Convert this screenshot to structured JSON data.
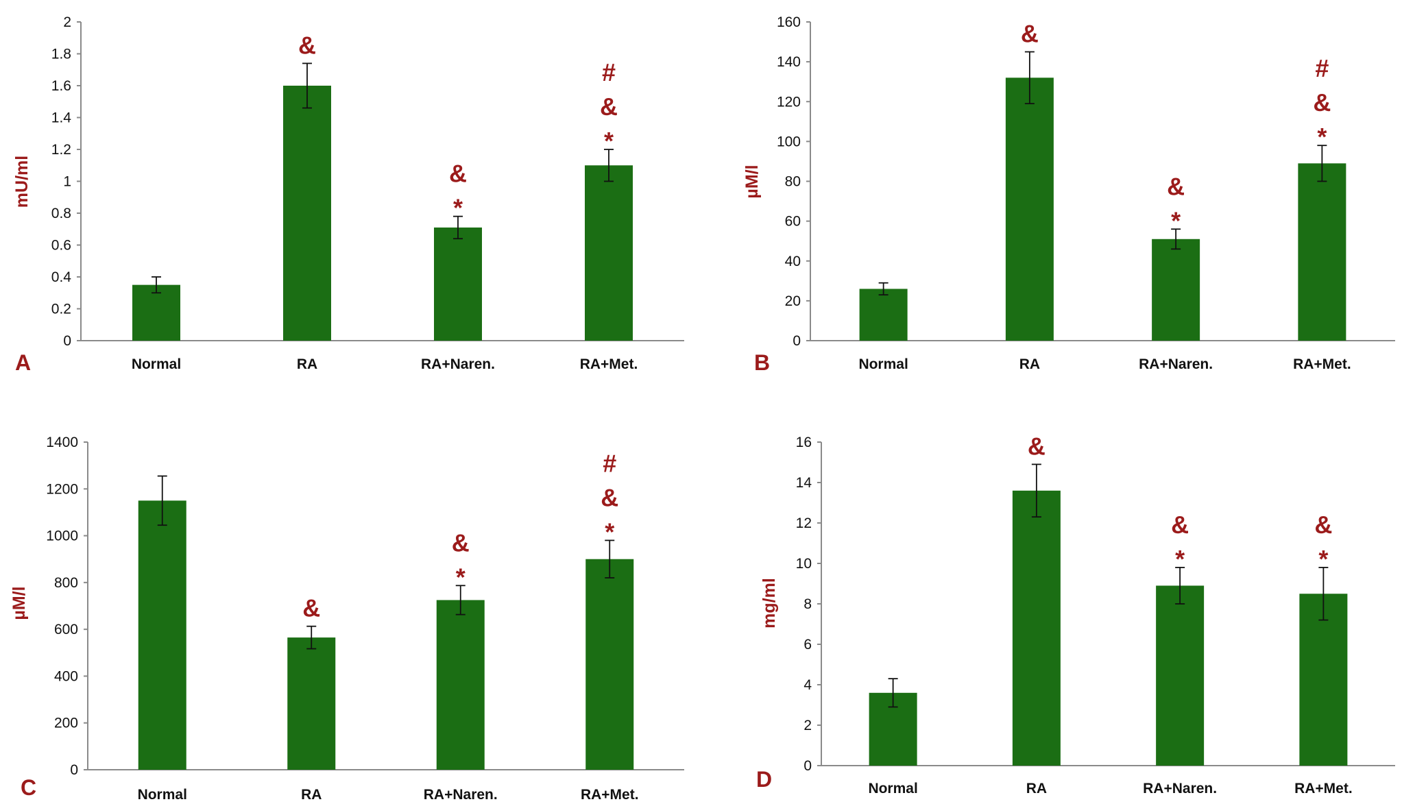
{
  "colors": {
    "bar": "#1b6e14",
    "accent": "#9b1b1b",
    "axis": "#8a8a8a"
  },
  "chart_data": [
    {
      "panel": "A",
      "type": "bar",
      "categories": [
        "Normal",
        "RA",
        "RA+Naren.",
        "RA+Met."
      ],
      "values": [
        0.35,
        1.6,
        0.71,
        1.1
      ],
      "errors": [
        0.05,
        0.14,
        0.07,
        0.1
      ],
      "annotations": [
        [],
        [
          "&"
        ],
        [
          "&",
          "*"
        ],
        [
          "#",
          "&",
          "*"
        ]
      ],
      "ylabel": "mU/ml",
      "ylim": [
        0,
        2
      ],
      "yticks": [
        "0",
        "0.2",
        "0.4",
        "0.6",
        "0.8",
        "1",
        "1.2",
        "1.4",
        "1.6",
        "1.8",
        "2"
      ],
      "grid": false
    },
    {
      "panel": "B",
      "type": "bar",
      "categories": [
        "Normal",
        "RA",
        "RA+Naren.",
        "RA+Met."
      ],
      "values": [
        26,
        132,
        51,
        89
      ],
      "errors": [
        3,
        13,
        5,
        9
      ],
      "annotations": [
        [],
        [
          "&"
        ],
        [
          "&",
          "*"
        ],
        [
          "#",
          "&",
          "*"
        ]
      ],
      "ylabel": "µM/l",
      "ylim": [
        0,
        160
      ],
      "yticks": [
        "0",
        "20",
        "40",
        "60",
        "80",
        "100",
        "120",
        "140",
        "160"
      ],
      "grid": false
    },
    {
      "panel": "C",
      "type": "bar",
      "categories": [
        "Normal",
        "RA",
        "RA+Naren.",
        "RA+Met."
      ],
      "values": [
        1150,
        565,
        725,
        900
      ],
      "errors": [
        105,
        48,
        62,
        80
      ],
      "annotations": [
        [],
        [
          "&"
        ],
        [
          "&",
          "*"
        ],
        [
          "#",
          "&",
          "*"
        ]
      ],
      "ylabel": "µM/l",
      "ylim": [
        0,
        1400
      ],
      "yticks": [
        "0",
        "200",
        "400",
        "600",
        "800",
        "1000",
        "1200",
        "1400"
      ],
      "grid": false
    },
    {
      "panel": "D",
      "type": "bar",
      "categories": [
        "Normal",
        "RA",
        "RA+Naren.",
        "RA+Met."
      ],
      "values": [
        3.6,
        13.6,
        8.9,
        8.5
      ],
      "errors": [
        0.7,
        1.3,
        0.9,
        1.3
      ],
      "annotations": [
        [],
        [
          "&"
        ],
        [
          "&",
          "*"
        ],
        [
          "&",
          "*"
        ]
      ],
      "ylabel": "mg/ml",
      "ylim": [
        0,
        16
      ],
      "yticks": [
        "0",
        "2",
        "4",
        "6",
        "8",
        "10",
        "12",
        "14",
        "16"
      ],
      "grid": false
    }
  ]
}
